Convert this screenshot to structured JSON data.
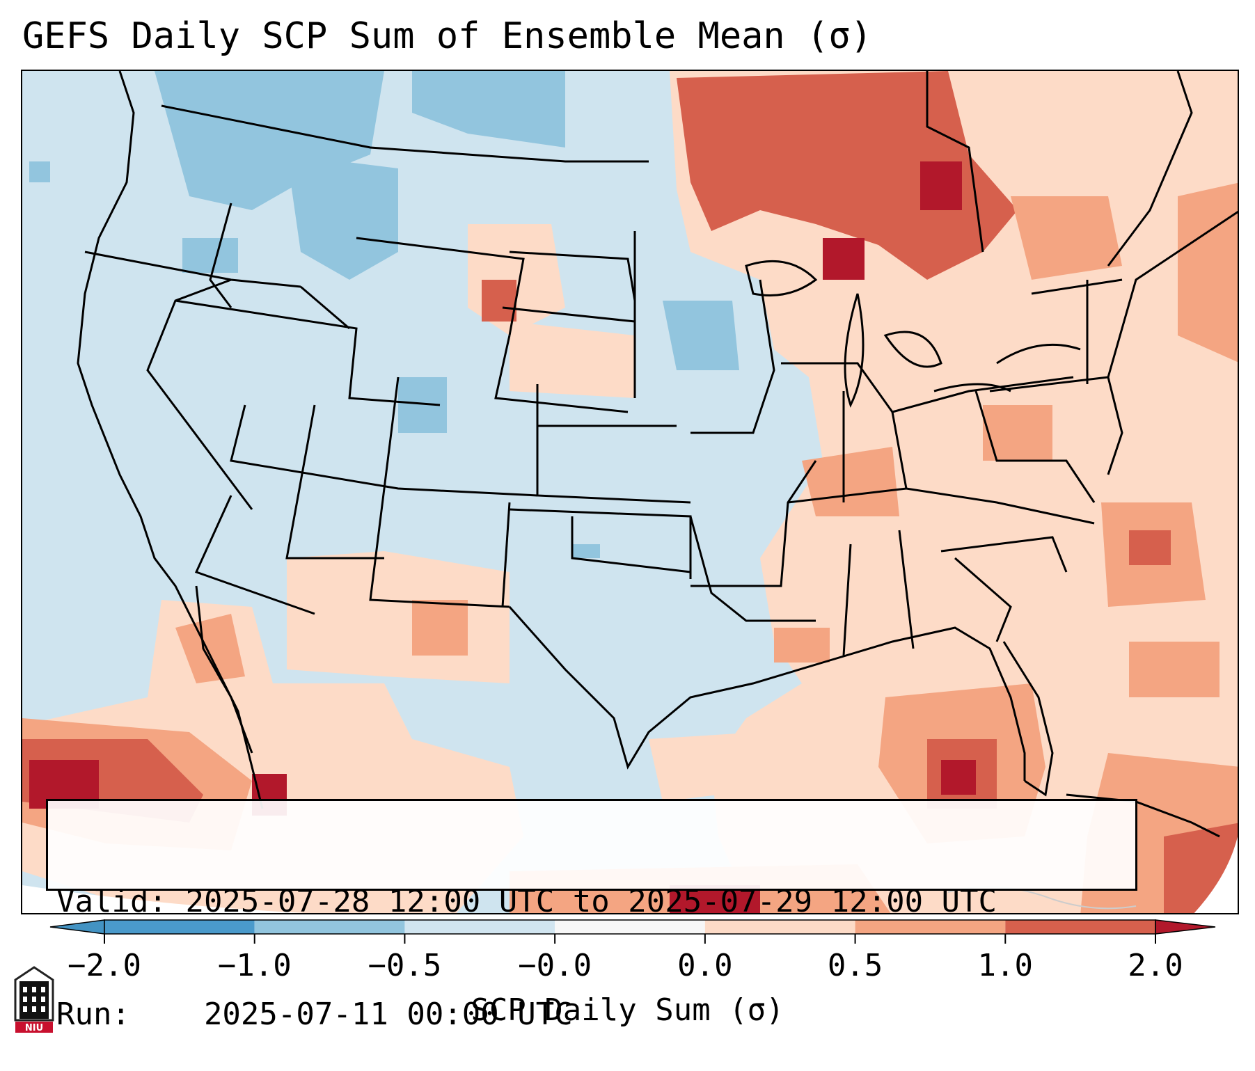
{
  "title": "GEFS Daily SCP Sum of Ensemble Mean (σ)",
  "info": {
    "valid_label": "Valid:",
    "valid_value": "2025-07-28 12:00 UTC to 2025-07-29 12:00 UTC",
    "run_label": "Run:",
    "run_value": "2025-07-11 00:00 UTC"
  },
  "colorbar": {
    "label": "SCP Daily Sum (σ)",
    "ticks": [
      "−2.0",
      "−1.0",
      "−0.5",
      "−0.0",
      "0.0",
      "0.5",
      "1.0",
      "2.0"
    ],
    "colors": [
      "#4393c3",
      "#92c5de",
      "#d1e5f0",
      "#f7f7f7",
      "#fddbc7",
      "#f4a582",
      "#d6604d",
      "#b2182b"
    ]
  },
  "logo": {
    "text": "NIU",
    "icon": "niu-tower-icon"
  },
  "map": {
    "region": "Contiguous United States",
    "legend_colors": {
      "neg_2": "#4393c3",
      "neg_1": "#92c5de",
      "neg_05": "#d1e5f0",
      "pos_05": "#fddbc7",
      "pos_1": "#f4a582",
      "pos_2": "#d6604d",
      "pos_3": "#b2182b"
    }
  }
}
